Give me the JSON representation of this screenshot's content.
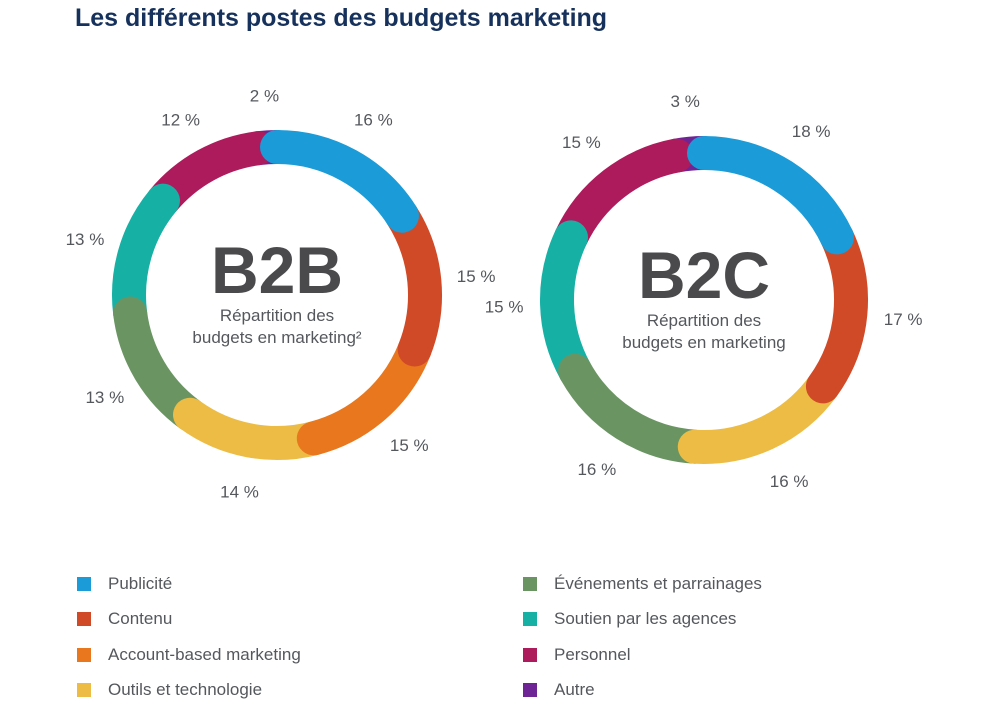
{
  "title": "Les différents postes des budgets marketing",
  "chart_data": [
    {
      "type": "donut",
      "center_title": "B2B",
      "center_subtitle": [
        "Répartition des",
        "budgets en marketing²"
      ],
      "categories": [
        "Publicité",
        "Contenu",
        "Account-based marketing",
        "Outils et technologie",
        "Événements et parrainages",
        "Soutien par les agences",
        "Personnel",
        "Autre"
      ],
      "values": [
        16,
        15,
        15,
        14,
        13,
        13,
        12,
        2
      ],
      "labels": [
        "16 %",
        "15 %",
        "15 %",
        "14 %",
        "13 %",
        "13 %",
        "12 %",
        "2 %"
      ]
    },
    {
      "type": "donut",
      "center_title": "B2C",
      "center_subtitle": [
        "Répartition des",
        "budgets en marketing"
      ],
      "categories": [
        "Publicité",
        "Contenu",
        "Outils et technologie",
        "Événements et parrainages",
        "Soutien par les agences",
        "Personnel",
        "Autre"
      ],
      "values": [
        18,
        17,
        16,
        16,
        15,
        15,
        3
      ],
      "labels": [
        "18 %",
        "17 %",
        "16 %",
        "16 %",
        "15 %",
        "15 %",
        "3 %"
      ]
    }
  ],
  "legend": [
    {
      "label": "Publicité",
      "color": "#1b9bd7"
    },
    {
      "label": "Contenu",
      "color": "#d04a27"
    },
    {
      "label": "Account-based marketing",
      "color": "#e8771e"
    },
    {
      "label": "Outils et technologie",
      "color": "#ecbc44"
    },
    {
      "label": "Événements et parrainages",
      "color": "#6a9562"
    },
    {
      "label": "Soutien par les agences",
      "color": "#16b0a5"
    },
    {
      "label": "Personnel",
      "color": "#ad1b5c"
    },
    {
      "label": "Autre",
      "color": "#6e2494"
    }
  ]
}
